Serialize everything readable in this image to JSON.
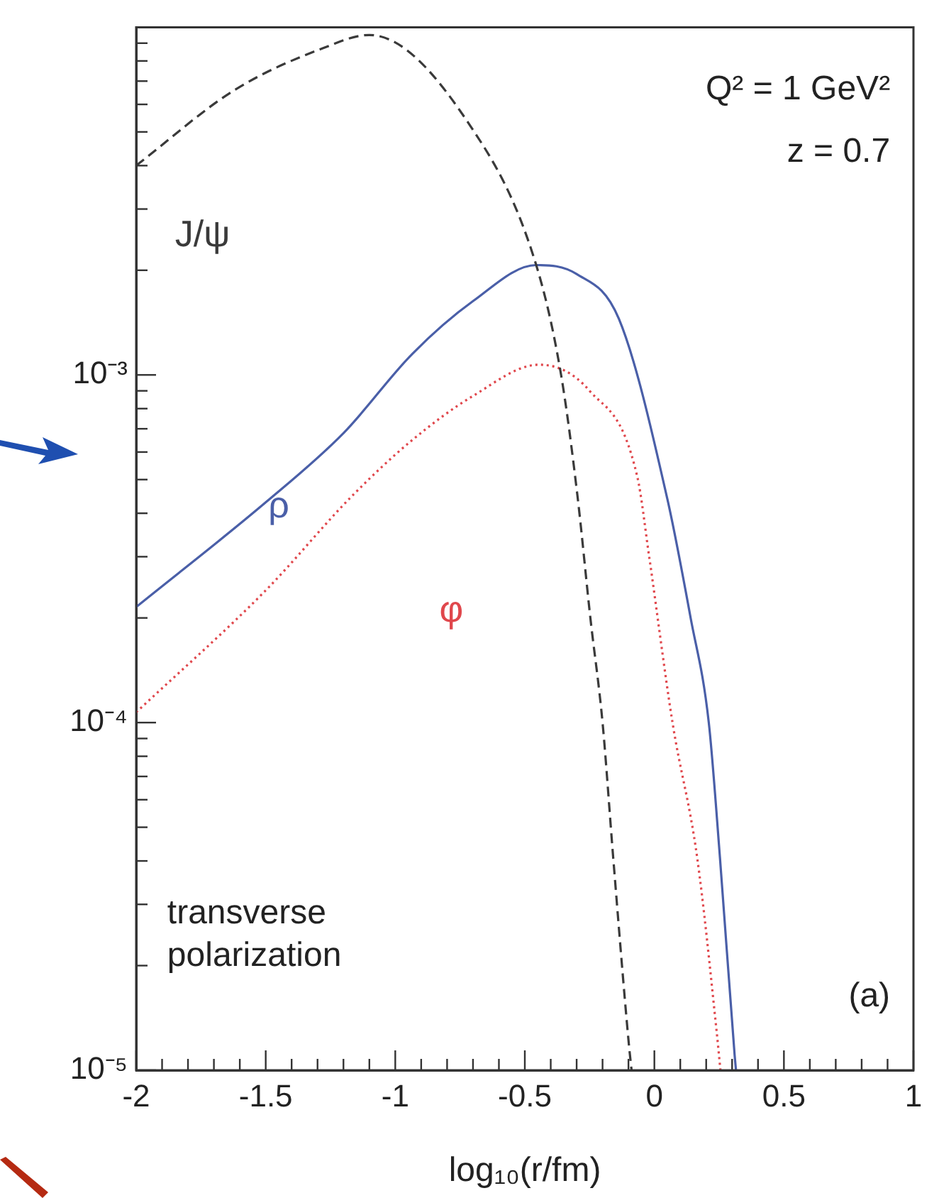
{
  "chart_data": {
    "type": "line",
    "xlabel": "log₁₀(r/fm)",
    "xlim": [
      -2,
      1
    ],
    "ylim": [
      1e-05,
      0.01
    ],
    "log": "y",
    "grid": false,
    "legend": false,
    "marker": "none",
    "xticks": [
      -2,
      {
        "value": -1.9,
        "label": null
      },
      {
        "value": -1.8,
        "label": null
      },
      {
        "value": -1.7,
        "label": null
      },
      {
        "value": -1.6,
        "label": null
      },
      -1.5,
      {
        "value": -1.4,
        "label": null
      },
      {
        "value": -1.3,
        "label": null
      },
      {
        "value": -1.2,
        "label": null
      },
      {
        "value": -1.1,
        "label": null
      },
      -1,
      {
        "value": -0.9,
        "label": null
      },
      {
        "value": -0.8,
        "label": null
      },
      {
        "value": -0.7,
        "label": null
      },
      {
        "value": -0.6,
        "label": null
      },
      -0.5,
      {
        "value": -0.4,
        "label": null
      },
      {
        "value": -0.3,
        "label": null
      },
      {
        "value": -0.2,
        "label": null
      },
      {
        "value": -0.1,
        "label": null
      },
      0,
      {
        "value": 0.1,
        "label": null
      },
      {
        "value": 0.2,
        "label": null
      },
      {
        "value": 0.3,
        "label": null
      },
      {
        "value": 0.4,
        "label": null
      },
      0.5,
      {
        "value": 0.6,
        "label": null
      },
      {
        "value": 0.7,
        "label": null
      },
      {
        "value": 0.8,
        "label": null
      },
      {
        "value": 0.9,
        "label": null
      },
      1
    ],
    "yticks": [
      {
        "value": 1e-05,
        "label": "10⁻⁵"
      },
      {
        "value": 2e-05,
        "label": null
      },
      {
        "value": 3e-05,
        "label": null
      },
      {
        "value": 4e-05,
        "label": null
      },
      {
        "value": 5e-05,
        "label": null
      },
      {
        "value": 6e-05,
        "label": null
      },
      {
        "value": 7e-05,
        "label": null
      },
      {
        "value": 8e-05,
        "label": null
      },
      {
        "value": 9e-05,
        "label": null
      },
      {
        "value": 0.0001,
        "label": "10⁻⁴"
      },
      {
        "value": 0.0002,
        "label": null
      },
      {
        "value": 0.0003,
        "label": null
      },
      {
        "value": 0.0004,
        "label": null
      },
      {
        "value": 0.0005,
        "label": null
      },
      {
        "value": 0.0006,
        "label": null
      },
      {
        "value": 0.0007,
        "label": null
      },
      {
        "value": 0.0008,
        "label": null
      },
      {
        "value": 0.0009,
        "label": null
      },
      {
        "value": 0.001,
        "label": "10⁻³"
      },
      {
        "value": 0.002,
        "label": null
      },
      {
        "value": 0.003,
        "label": null
      },
      {
        "value": 0.004,
        "label": null
      },
      {
        "value": 0.005,
        "label": null
      },
      {
        "value": 0.006,
        "label": null
      },
      {
        "value": 0.007,
        "label": null
      },
      {
        "value": 0.008,
        "label": null
      },
      {
        "value": 0.009,
        "label": null
      }
    ],
    "annotations": [
      "Q² = 1 GeV²",
      "z = 0.7",
      "transverse polarization",
      "(a)"
    ],
    "series": [
      {
        "name": "J/ψ",
        "color": "#3a3a3a",
        "line_style": "dashed",
        "x": [
          -2,
          -1.62,
          -1.28,
          -1.1,
          -0.71,
          -0.456,
          -0.36,
          -0.297,
          -0.247,
          -0.2,
          -0.159,
          -0.099,
          -0.088
        ],
        "values": [
          0.004,
          0.0066,
          0.0087,
          0.0095,
          0.0052,
          0.00207,
          0.001,
          0.00045,
          0.0002,
          0.0001,
          4.1e-05,
          1.2e-05,
          1e-05
        ]
      },
      {
        "name": "ρ",
        "color": "#4a5fa8",
        "line_style": "solid",
        "x": [
          -2,
          -1.5,
          -1.2,
          -0.934,
          -0.7,
          -0.456,
          -0.3,
          -0.137,
          0.05,
          0.14,
          0.21,
          0.253,
          0.31,
          0.315
        ],
        "values": [
          0.000215,
          0.00043,
          0.00068,
          0.00115,
          0.00163,
          0.00207,
          0.00195,
          0.00145,
          0.00044,
          0.0002,
          0.0001,
          4.1e-05,
          1.1e-05,
          1e-05
        ]
      },
      {
        "name": "φ",
        "color": "#e0474c",
        "line_style": "dotted",
        "x": [
          -2,
          -1.5,
          -1.165,
          -0.934,
          -0.7,
          -0.445,
          -0.25,
          -0.066,
          -0.02,
          0.07,
          0.165,
          0.24,
          0.255
        ],
        "values": [
          0.000107,
          0.00024,
          0.00045,
          0.00065,
          0.00087,
          0.00107,
          0.0009,
          0.00051,
          0.0003,
          0.0001,
          4.1e-05,
          1.3e-05,
          1e-05
        ]
      }
    ]
  }
}
